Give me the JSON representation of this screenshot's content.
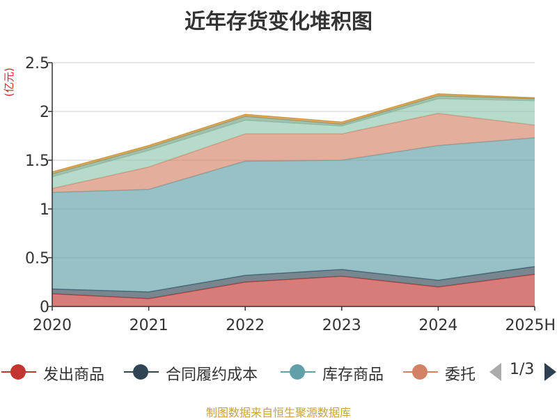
{
  "chart_data": {
    "type": "area",
    "stacked": true,
    "title": "近年存货变化堆积图",
    "ylabel": "(亿元)",
    "xlabel": "",
    "categories": [
      "2020",
      "2021",
      "2022",
      "2023",
      "2024",
      "2025H"
    ],
    "ylim": [
      0,
      2.5
    ],
    "yticks": [
      "0",
      "0.5",
      "1",
      "1.5",
      "2",
      "2.5"
    ],
    "grid": true,
    "series": [
      {
        "name": "发出商品",
        "color": "#c23531",
        "values": [
          0.13,
          0.08,
          0.25,
          0.31,
          0.2,
          0.33
        ]
      },
      {
        "name": "合同履约成本",
        "color": "#2f4554",
        "values": [
          0.05,
          0.07,
          0.07,
          0.07,
          0.07,
          0.08
        ]
      },
      {
        "name": "库存商品",
        "color": "#61a0a8",
        "values": [
          0.99,
          1.05,
          1.17,
          1.12,
          1.38,
          1.32
        ]
      },
      {
        "name": "委托加工物资",
        "color": "#d48265",
        "values": [
          0.04,
          0.23,
          0.28,
          0.27,
          0.33,
          0.13
        ]
      },
      {
        "name": "",
        "color": "#91c7ae",
        "values": [
          0.12,
          0.17,
          0.14,
          0.08,
          0.15,
          0.25
        ]
      },
      {
        "name": "",
        "color": "#749f83",
        "values": [
          0.03,
          0.03,
          0.04,
          0.02,
          0.03,
          0.02
        ]
      },
      {
        "name": "",
        "color": "#ca8622",
        "values": [
          0.02,
          0.02,
          0.02,
          0.02,
          0.02,
          0.01
        ]
      }
    ]
  },
  "legend": {
    "items": [
      {
        "label": "发出商品",
        "color": "#c23531"
      },
      {
        "label": "合同履约成本",
        "color": "#2f4554"
      },
      {
        "label": "库存商品",
        "color": "#61a0a8"
      },
      {
        "label": "委托",
        "color": "#d48265"
      }
    ],
    "page_indicator": "1/3"
  },
  "footer": {
    "source": "制图数据来自恒生聚源数据库"
  }
}
